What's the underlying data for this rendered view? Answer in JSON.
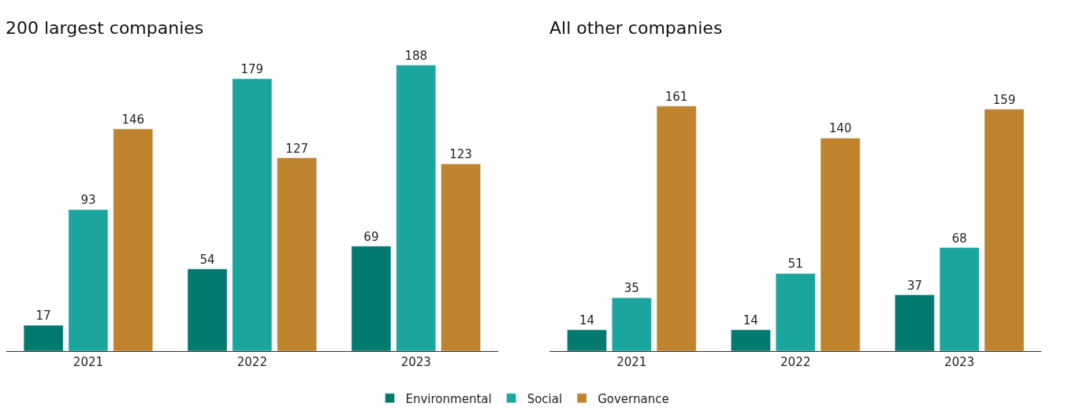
{
  "chart_data": [
    {
      "type": "bar",
      "title": "200 largest companies",
      "categories": [
        "2021",
        "2022",
        "2023"
      ],
      "data_labels": true,
      "series": [
        {
          "color": "#00796f",
          "values": [
            17,
            54,
            69
          ]
        },
        {
          "color": "#1aa59e",
          "values": [
            93,
            179,
            188
          ]
        },
        {
          "color": "#bf832d",
          "values": [
            146,
            127,
            123
          ]
        }
      ]
    },
    {
      "type": "bar",
      "title": "All other companies",
      "categories": [
        "2021",
        "2022",
        "2023"
      ],
      "data_labels": true,
      "legend": "bottom",
      "series": [
        {
          "name": "Environmental",
          "color": "#00796f",
          "values": [
            14,
            14,
            37
          ]
        },
        {
          "name": "Social",
          "color": "#1aa59e",
          "values": [
            35,
            51,
            68
          ]
        },
        {
          "name": "Governance",
          "color": "#bf832d",
          "values": [
            161,
            140,
            159
          ]
        }
      ]
    }
  ]
}
